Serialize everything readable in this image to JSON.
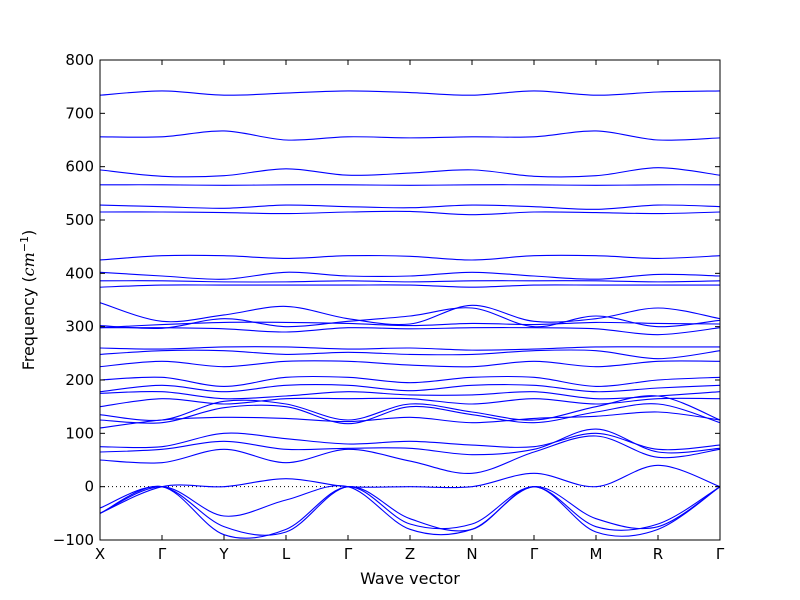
{
  "chart_data": {
    "type": "line",
    "subtype": "phonon-band-structure",
    "xlabel": "Wave vector",
    "ylabel_prefix": "Frequency (",
    "ylabel_unit": "cm",
    "ylabel_exp": "−1",
    "ylabel_suffix": ")",
    "ylim": [
      -100,
      800
    ],
    "y_ticks": [
      -100,
      0,
      100,
      200,
      300,
      400,
      500,
      600,
      700,
      800
    ],
    "x_ticks": [
      "X",
      "Γ",
      "Y",
      "L",
      "Γ",
      "Z",
      "N",
      "Γ",
      "M",
      "R",
      "Γ"
    ],
    "zero_line": {
      "value": 0,
      "style": "dotted"
    },
    "grid": false,
    "line_color": "#0000ff",
    "series": [
      {
        "values": [
          734,
          742,
          734,
          738,
          742,
          739,
          734,
          742,
          734,
          740,
          742
        ]
      },
      {
        "values": [
          656,
          656,
          667,
          650,
          656,
          654,
          656,
          656,
          667,
          650,
          654
        ]
      },
      {
        "values": [
          594,
          582,
          583,
          596,
          584,
          588,
          594,
          582,
          583,
          598,
          584
        ]
      },
      {
        "values": [
          566,
          566,
          565,
          566,
          566,
          565,
          566,
          566,
          565,
          566,
          566
        ]
      },
      {
        "values": [
          528,
          525,
          522,
          528,
          525,
          523,
          528,
          525,
          520,
          528,
          525
        ]
      },
      {
        "values": [
          515,
          515,
          514,
          512,
          515,
          516,
          510,
          515,
          514,
          512,
          515
        ]
      },
      {
        "values": [
          425,
          433,
          433,
          428,
          433,
          432,
          425,
          433,
          433,
          428,
          433
        ]
      },
      {
        "values": [
          402,
          395,
          389,
          402,
          395,
          395,
          402,
          395,
          389,
          398,
          395
        ]
      },
      {
        "values": [
          386,
          386,
          384,
          384,
          386,
          384,
          386,
          386,
          386,
          384,
          386
        ]
      },
      {
        "values": [
          374,
          378,
          378,
          378,
          378,
          378,
          374,
          378,
          378,
          378,
          378
        ]
      },
      {
        "values": [
          345,
          310,
          322,
          338,
          315,
          305,
          340,
          310,
          315,
          335,
          315
        ]
      },
      {
        "values": [
          302,
          297,
          315,
          300,
          310,
          320,
          335,
          300,
          320,
          300,
          312
        ]
      },
      {
        "values": [
          298,
          304,
          308,
          308,
          306,
          302,
          306,
          304,
          308,
          306,
          305
        ]
      },
      {
        "values": [
          298,
          298,
          296,
          290,
          298,
          296,
          298,
          298,
          296,
          285,
          298
        ]
      },
      {
        "values": [
          260,
          258,
          262,
          262,
          258,
          260,
          256,
          258,
          262,
          262,
          262
        ]
      },
      {
        "values": [
          248,
          255,
          255,
          248,
          252,
          248,
          248,
          255,
          255,
          240,
          255
        ]
      },
      {
        "values": [
          225,
          235,
          225,
          235,
          235,
          228,
          225,
          235,
          225,
          235,
          235
        ]
      },
      {
        "values": [
          200,
          205,
          188,
          205,
          205,
          195,
          205,
          205,
          188,
          200,
          205
        ]
      },
      {
        "values": [
          178,
          190,
          178,
          190,
          190,
          180,
          190,
          190,
          178,
          185,
          190
        ]
      },
      {
        "values": [
          175,
          178,
          165,
          170,
          178,
          172,
          172,
          178,
          165,
          170,
          178
        ]
      },
      {
        "values": [
          150,
          165,
          155,
          165,
          165,
          165,
          155,
          165,
          155,
          165,
          165
        ]
      },
      {
        "values": [
          135,
          125,
          160,
          155,
          125,
          155,
          140,
          125,
          150,
          170,
          125
        ]
      },
      {
        "values": [
          125,
          120,
          148,
          150,
          118,
          150,
          135,
          120,
          140,
          155,
          120
        ]
      },
      {
        "values": [
          110,
          125,
          130,
          128,
          122,
          130,
          120,
          128,
          132,
          140,
          125
        ]
      },
      {
        "values": [
          75,
          75,
          100,
          90,
          80,
          85,
          78,
          75,
          100,
          70,
          78
        ]
      },
      {
        "values": [
          65,
          70,
          85,
          70,
          72,
          72,
          60,
          70,
          108,
          65,
          72
        ]
      },
      {
        "values": [
          50,
          45,
          70,
          45,
          70,
          48,
          25,
          65,
          95,
          55,
          70
        ]
      },
      {
        "values": [
          -50,
          0,
          0,
          15,
          0,
          0,
          0,
          25,
          0,
          40,
          0
        ]
      },
      {
        "values": [
          -50,
          0,
          -55,
          -25,
          0,
          -80,
          -80,
          0,
          -60,
          -75,
          0
        ]
      },
      {
        "values": [
          -40,
          0,
          -75,
          -85,
          0,
          -60,
          -80,
          0,
          -85,
          -80,
          0
        ]
      },
      {
        "values": [
          -50,
          0,
          -90,
          -80,
          0,
          -70,
          -70,
          0,
          -75,
          -70,
          0
        ]
      }
    ]
  }
}
